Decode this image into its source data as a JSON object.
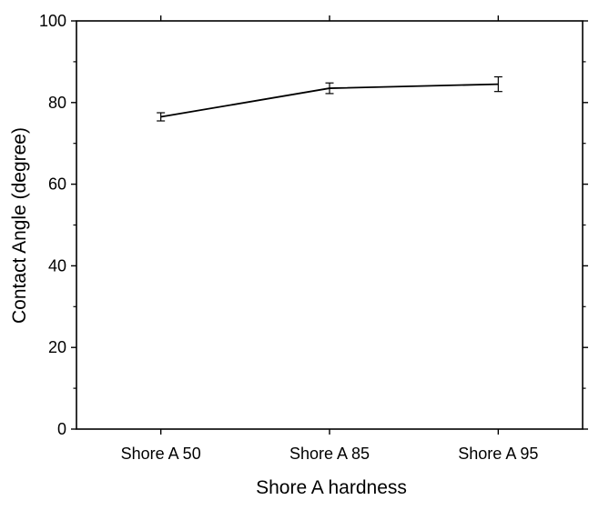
{
  "chart_data": {
    "type": "line",
    "title": "",
    "xlabel": "Shore A hardness",
    "ylabel": "Contact Angle (degree)",
    "categories": [
      "Shore A 50",
      "Shore A 85",
      "Shore A 95"
    ],
    "series": [
      {
        "values": [
          76.5,
          83.5,
          84.5
        ],
        "errors": [
          1.0,
          1.3,
          1.8
        ]
      }
    ],
    "ylim": [
      0,
      100
    ],
    "yticks": [
      0,
      20,
      40,
      60,
      80,
      100
    ],
    "grid": false,
    "legend": "none"
  },
  "colors": {
    "line": "#000000",
    "axis": "#000000",
    "background": "#ffffff"
  }
}
